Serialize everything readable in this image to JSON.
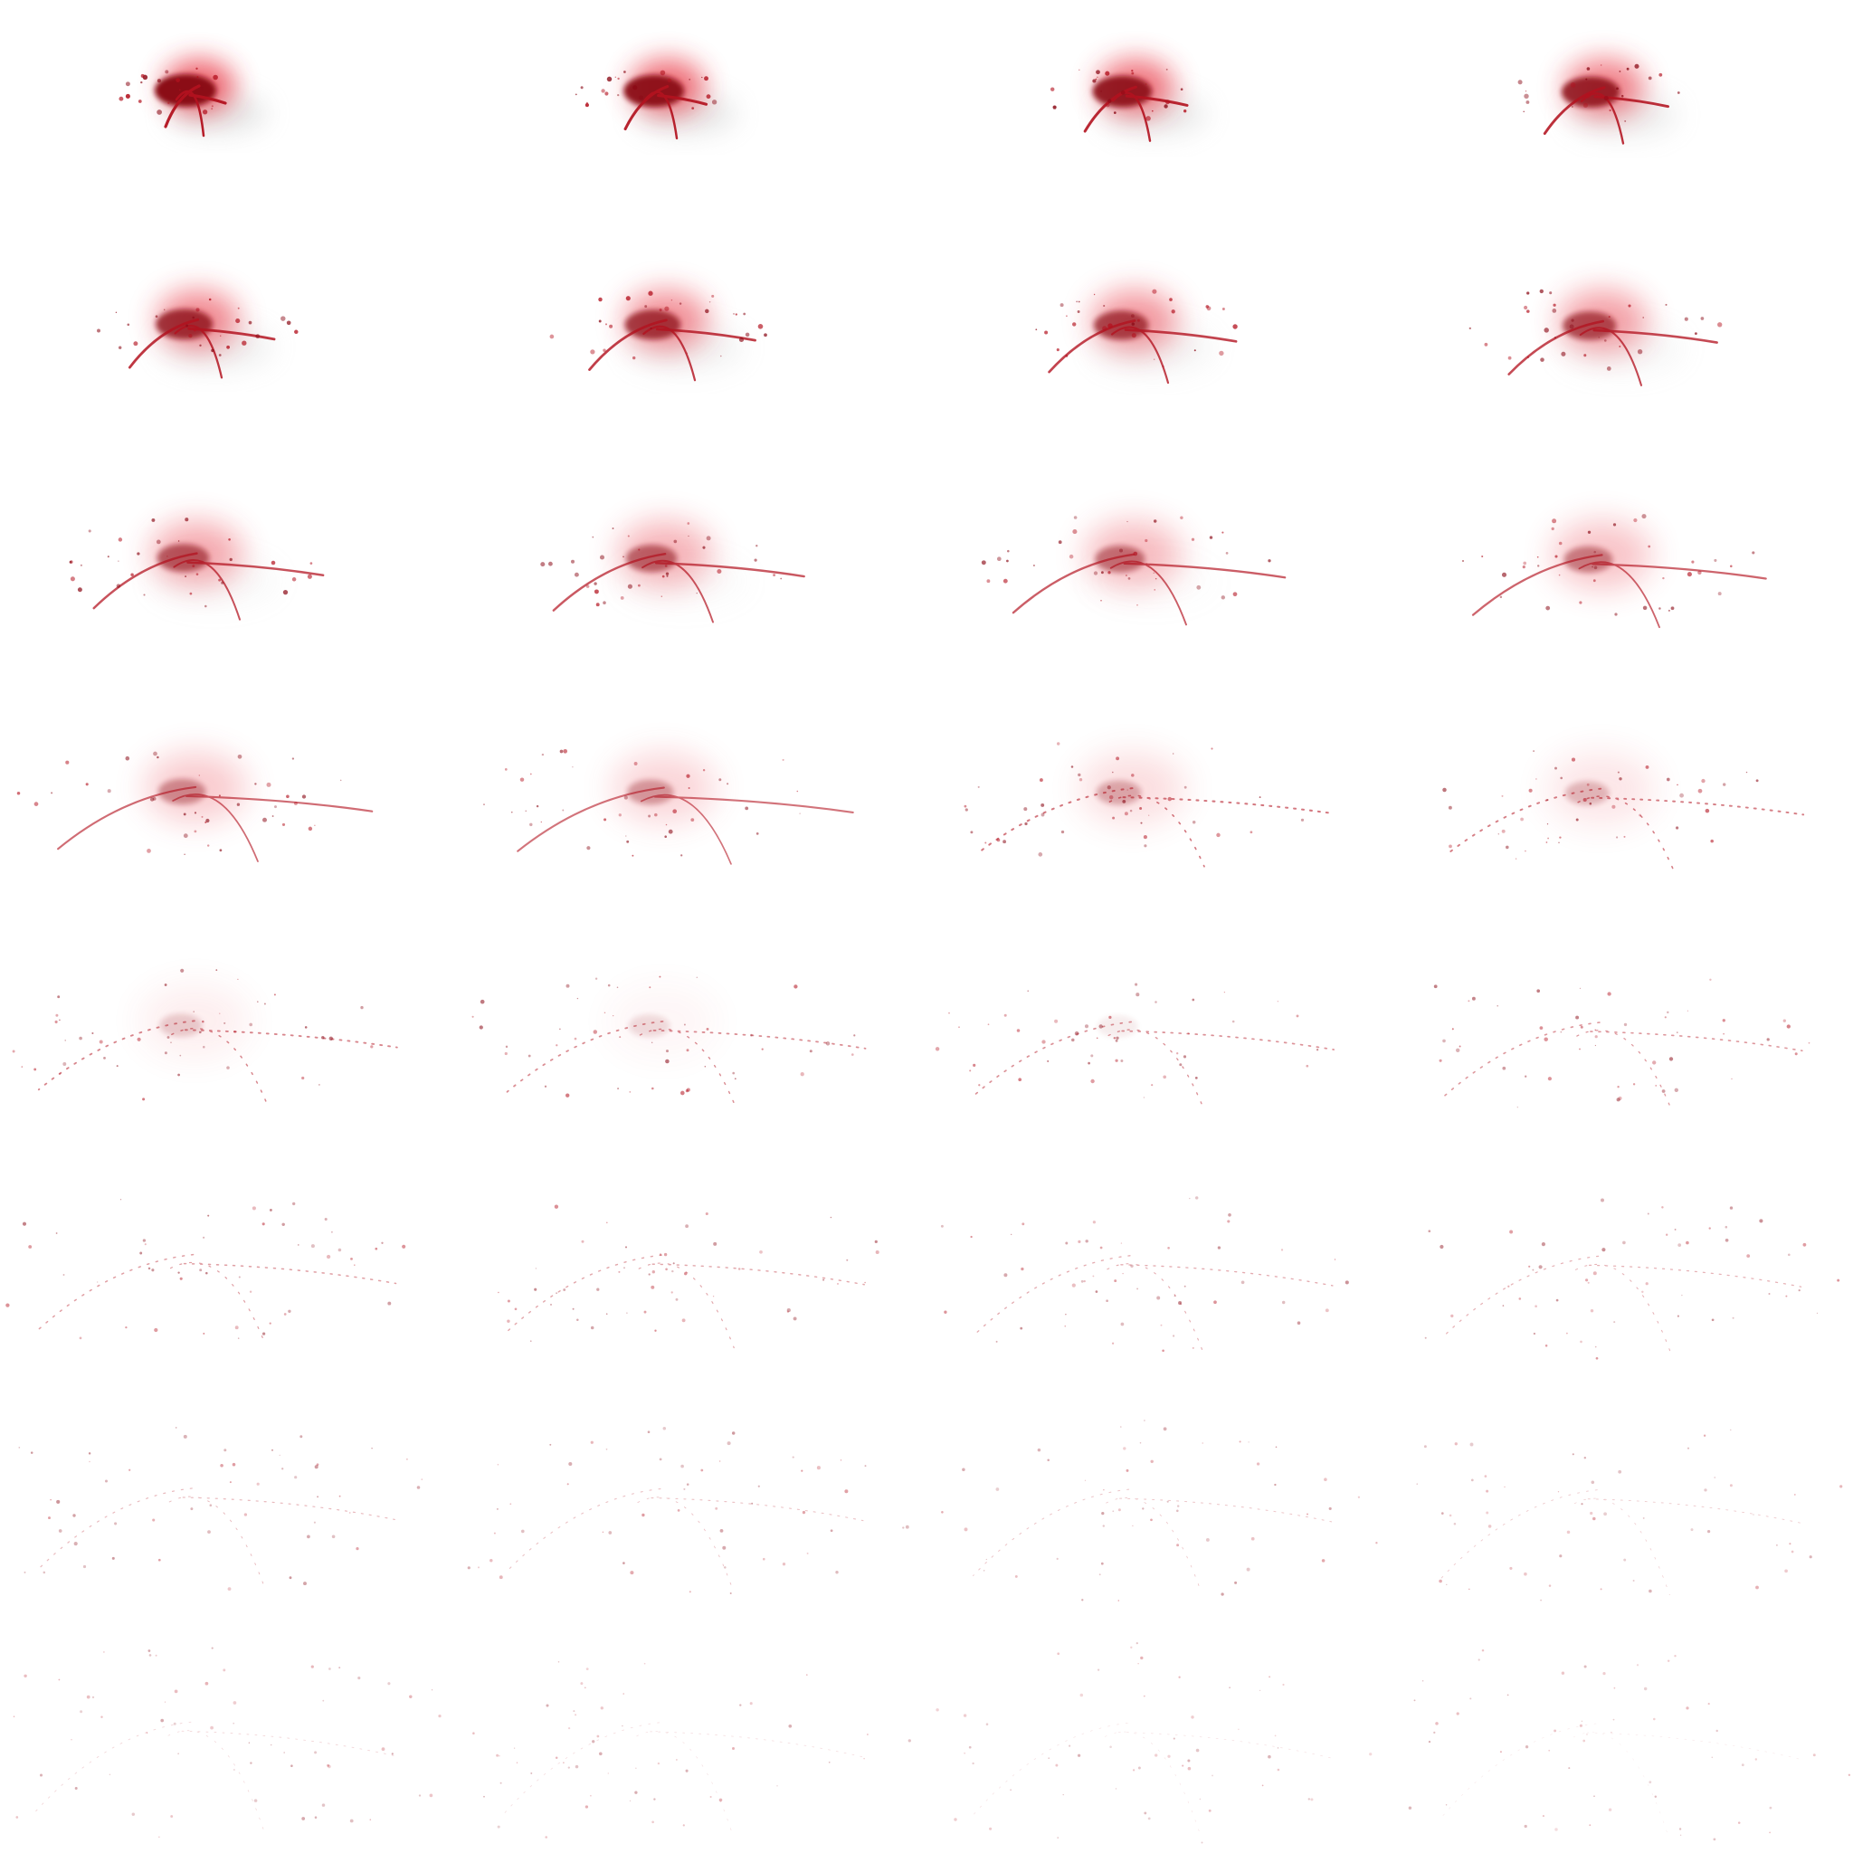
{
  "sprite_sheet": {
    "subject": "blood-splatter-animation",
    "grid": {
      "columns": 4,
      "rows": 8
    },
    "frame_count": 32,
    "background_color": "#ffffff",
    "colors": {
      "core": "#8b0a16",
      "mid": "#b3121f",
      "haze": "#e8323f",
      "mist": "#b4b4b4"
    },
    "phases": [
      {
        "name": "impact-burst",
        "frames": [
          1,
          2,
          3,
          4
        ]
      },
      {
        "name": "spreading-streaks",
        "frames": [
          5,
          6,
          7,
          8
        ]
      },
      {
        "name": "thinning-arcs",
        "frames": [
          9,
          10,
          11,
          12,
          13,
          14,
          15,
          16
        ]
      },
      {
        "name": "droplet-trails",
        "frames": [
          17,
          18,
          19,
          20,
          21,
          22,
          23,
          24
        ]
      },
      {
        "name": "fading-specks",
        "frames": [
          25,
          26,
          27,
          28,
          29,
          30,
          31,
          32
        ]
      }
    ]
  }
}
